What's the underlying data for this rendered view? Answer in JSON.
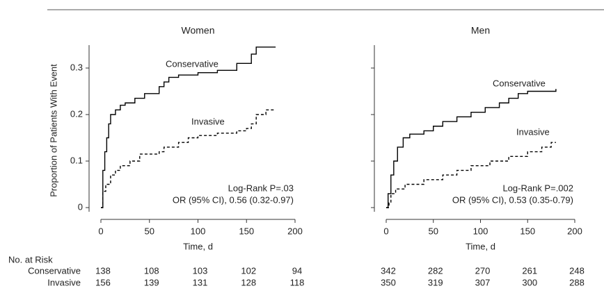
{
  "risk_table": {
    "title": "No. at Risk",
    "rows": [
      "Conservative",
      "Invasive"
    ]
  },
  "chart_data": [
    {
      "type": "line",
      "step": "post",
      "title": "Women",
      "ylabel": "Proportion of Patients With Event",
      "xlabel": "Time, d",
      "xlim": [
        0,
        200
      ],
      "xticks": [
        0,
        50,
        100,
        150,
        200
      ],
      "ylim": [
        0,
        0.3
      ],
      "yticks": [
        0,
        0.1,
        0.2,
        0.3
      ],
      "series": [
        {
          "name": "Conservative",
          "color": "#000000",
          "dash": false,
          "x": [
            0,
            2,
            4,
            6,
            8,
            10,
            15,
            20,
            25,
            35,
            45,
            60,
            65,
            70,
            80,
            100,
            120,
            140,
            155,
            160,
            180
          ],
          "values": [
            0,
            0.08,
            0.12,
            0.15,
            0.18,
            0.2,
            0.21,
            0.22,
            0.225,
            0.235,
            0.245,
            0.26,
            0.27,
            0.28,
            0.285,
            0.29,
            0.295,
            0.31,
            0.33,
            0.345,
            0.345
          ]
        },
        {
          "name": "Invasive",
          "color": "#000000",
          "dash": true,
          "x": [
            0,
            2,
            5,
            10,
            15,
            20,
            30,
            40,
            60,
            65,
            80,
            90,
            100,
            120,
            140,
            150,
            155,
            160,
            170,
            180
          ],
          "values": [
            0,
            0.035,
            0.05,
            0.07,
            0.08,
            0.09,
            0.1,
            0.115,
            0.12,
            0.13,
            0.14,
            0.15,
            0.155,
            0.16,
            0.165,
            0.17,
            0.18,
            0.2,
            0.21,
            0.21
          ]
        }
      ],
      "annotations": [
        "Log-Rank P=.03",
        "OR (95% CI), 0.56 (0.32-0.97)"
      ],
      "at_risk": [
        [
          138,
          108,
          103,
          102,
          94
        ],
        [
          156,
          139,
          131,
          128,
          118
        ]
      ]
    },
    {
      "type": "line",
      "step": "post",
      "title": "Men",
      "xlabel": "Time, d",
      "xlim": [
        0,
        200
      ],
      "xticks": [
        0,
        50,
        100,
        150,
        200
      ],
      "ylim": [
        0,
        0.3
      ],
      "yticks": [
        {
          "value": 0,
          "label": null
        },
        {
          "value": 0.1,
          "label": null
        },
        {
          "value": 0.2,
          "label": null
        },
        {
          "value": 0.3,
          "label": null
        }
      ],
      "series": [
        {
          "name": "Conservative",
          "color": "#000000",
          "dash": false,
          "x": [
            0,
            2,
            5,
            8,
            12,
            18,
            25,
            40,
            50,
            60,
            75,
            90,
            105,
            120,
            130,
            140,
            150,
            180
          ],
          "values": [
            0,
            0.03,
            0.07,
            0.1,
            0.13,
            0.15,
            0.158,
            0.165,
            0.175,
            0.185,
            0.195,
            0.205,
            0.215,
            0.225,
            0.235,
            0.245,
            0.25,
            0.255
          ]
        },
        {
          "name": "Invasive",
          "color": "#000000",
          "dash": true,
          "x": [
            0,
            3,
            5,
            10,
            20,
            40,
            60,
            75,
            90,
            110,
            130,
            150,
            165,
            175,
            180
          ],
          "values": [
            0,
            0.01,
            0.03,
            0.04,
            0.05,
            0.06,
            0.07,
            0.08,
            0.09,
            0.1,
            0.11,
            0.12,
            0.13,
            0.14,
            0.14
          ]
        }
      ],
      "annotations": [
        "Log-Rank P=.002",
        "OR (95% CI), 0.53 (0.35-0.79)"
      ],
      "at_risk": [
        [
          342,
          282,
          270,
          261,
          248
        ],
        [
          350,
          319,
          307,
          300,
          288
        ]
      ]
    }
  ]
}
